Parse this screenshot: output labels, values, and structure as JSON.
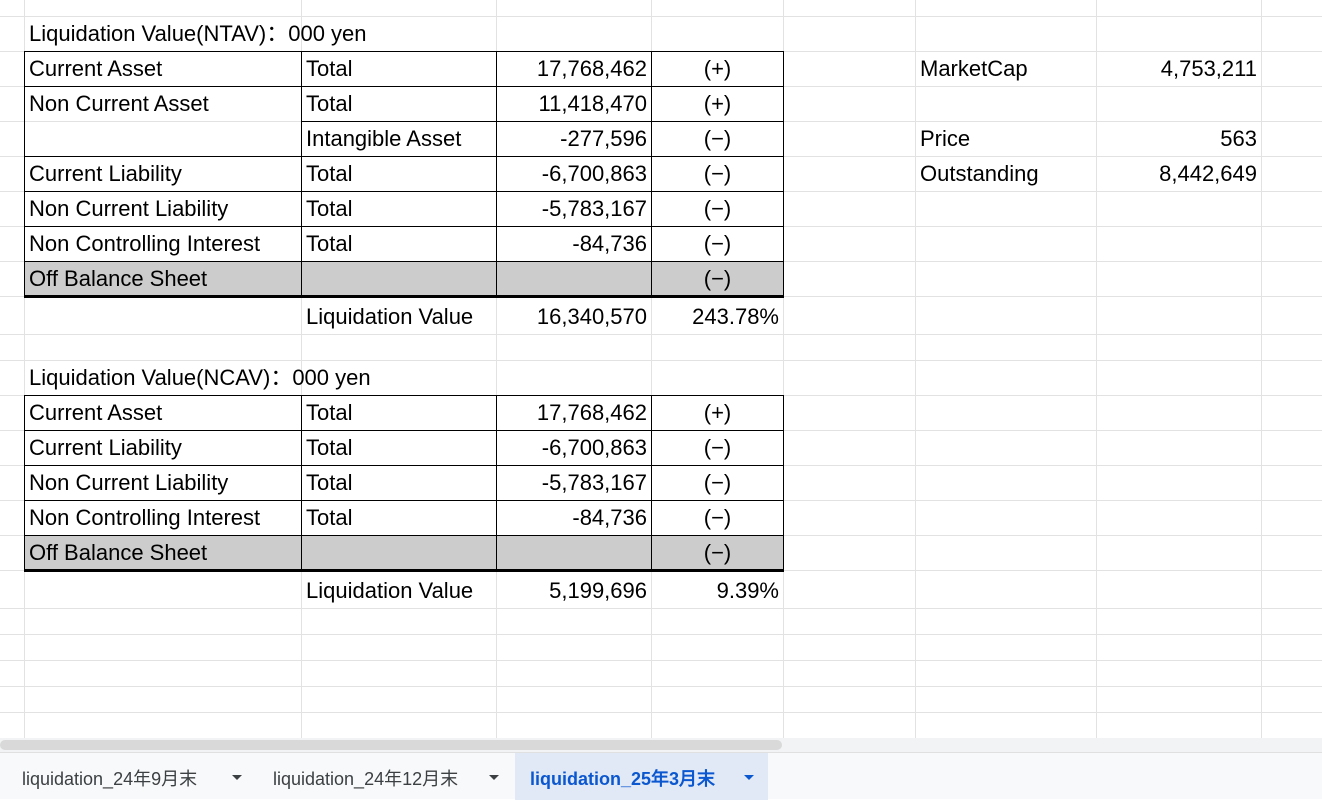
{
  "ntav": {
    "title": "Liquidation Value(NTAV)：000 yen",
    "rows": [
      {
        "label": "Current Asset",
        "sub": "Total",
        "value": "17,768,462",
        "sign": "(+)"
      },
      {
        "label": "Non Current Asset",
        "sub": "Total",
        "value": "11,418,470",
        "sign": "(+)"
      },
      {
        "label": "",
        "sub": "Intangible Asset",
        "value": "-277,596",
        "sign": "(−)"
      },
      {
        "label": "Current Liability",
        "sub": "Total",
        "value": "-6,700,863",
        "sign": "(−)"
      },
      {
        "label": "Non Current Liability",
        "sub": "Total",
        "value": "-5,783,167",
        "sign": "(−)"
      },
      {
        "label": "Non Controlling Interest",
        "sub": "Total",
        "value": "-84,736",
        "sign": "(−)"
      },
      {
        "label": "Off Balance Sheet",
        "sub": "",
        "value": "",
        "sign": "(−)"
      }
    ],
    "result_label": "Liquidation Value",
    "result_value": "16,340,570",
    "result_pct": "243.78%"
  },
  "ncav": {
    "title": "Liquidation Value(NCAV)：000 yen",
    "rows": [
      {
        "label": "Current Asset",
        "sub": "Total",
        "value": "17,768,462",
        "sign": "(+)"
      },
      {
        "label": "Current Liability",
        "sub": "Total",
        "value": "-6,700,863",
        "sign": "(−)"
      },
      {
        "label": "Non Current Liability",
        "sub": "Total",
        "value": "-5,783,167",
        "sign": "(−)"
      },
      {
        "label": "Non Controlling Interest",
        "sub": "Total",
        "value": "-84,736",
        "sign": "(−)"
      },
      {
        "label": "Off Balance Sheet",
        "sub": "",
        "value": "",
        "sign": "(−)"
      }
    ],
    "result_label": "Liquidation Value",
    "result_value": "5,199,696",
    "result_pct": "9.39%"
  },
  "market": {
    "marketcap_label": "MarketCap",
    "marketcap_value": "4,753,211",
    "price_label": "Price",
    "price_value": "563",
    "outstanding_label": "Outstanding",
    "outstanding_value": "8,442,649"
  },
  "tabs": [
    {
      "label": "liquidation_24年9月末",
      "active": false
    },
    {
      "label": "liquidation_24年12月末",
      "active": false
    },
    {
      "label": "liquidation_25年3月末",
      "active": true
    }
  ],
  "colors": {
    "gray_fill": "#cccccc",
    "active_tab_bg": "#e1e9f7",
    "active_tab_text": "#0b57d0"
  }
}
